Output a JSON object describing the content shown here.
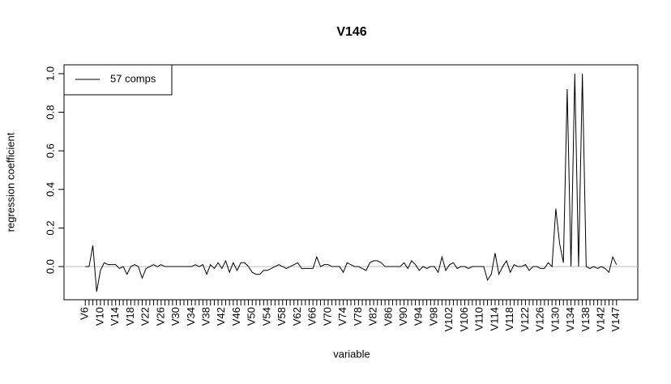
{
  "chart_data": {
    "type": "line",
    "title": "V146",
    "xlabel": "variable",
    "ylabel": "regression coefficient",
    "categories": [
      "V6",
      null,
      null,
      null,
      "V10",
      null,
      null,
      null,
      "V14",
      null,
      null,
      null,
      "V18",
      null,
      null,
      null,
      "V22",
      null,
      null,
      null,
      "V26",
      null,
      null,
      null,
      "V30",
      null,
      null,
      null,
      "V34",
      null,
      null,
      null,
      "V38",
      null,
      null,
      null,
      "V42",
      null,
      null,
      null,
      "V46",
      null,
      null,
      null,
      "V50",
      null,
      null,
      null,
      "V54",
      null,
      null,
      null,
      "V58",
      null,
      null,
      null,
      "V62",
      null,
      null,
      null,
      "V66",
      null,
      null,
      null,
      "V70",
      null,
      null,
      null,
      "V74",
      null,
      null,
      null,
      "V78",
      null,
      null,
      null,
      "V82",
      null,
      null,
      null,
      "V86",
      null,
      null,
      null,
      "V90",
      null,
      null,
      null,
      "V94",
      null,
      null,
      null,
      "V98",
      null,
      null,
      null,
      "V102",
      null,
      null,
      null,
      "V106",
      null,
      null,
      null,
      "V110",
      null,
      null,
      null,
      "V114",
      null,
      null,
      null,
      "V118",
      null,
      null,
      null,
      "V122",
      null,
      null,
      null,
      "V126",
      null,
      null,
      null,
      "V130",
      null,
      null,
      null,
      "V134",
      null,
      null,
      null,
      "V138",
      null,
      null,
      null,
      "V142",
      null,
      null,
      null,
      "V147"
    ],
    "series": [
      {
        "name": "57 comps",
        "color": "#000000",
        "values": [
          0,
          0,
          0.11,
          -0.13,
          -0.02,
          0.02,
          0.01,
          0.01,
          0.01,
          -0.01,
          0,
          -0.04,
          0,
          0.01,
          0,
          -0.06,
          -0.01,
          0,
          0.01,
          0,
          0.01,
          0,
          0,
          0,
          0,
          0,
          0,
          0,
          0,
          0.01,
          0,
          0.01,
          -0.04,
          0.01,
          -0.01,
          0.02,
          -0.01,
          0.03,
          -0.03,
          0.02,
          -0.02,
          0.02,
          0.02,
          0,
          -0.03,
          -0.04,
          -0.04,
          -0.02,
          -0.02,
          -0.01,
          0,
          0.01,
          0,
          -0.01,
          0,
          0.01,
          0.02,
          -0.01,
          -0.01,
          -0.01,
          -0.01,
          0.05,
          0,
          0.01,
          0.01,
          0,
          0,
          0,
          -0.03,
          0.02,
          0.01,
          0,
          0,
          -0.01,
          -0.02,
          0.02,
          0.03,
          0.03,
          0.02,
          0,
          0,
          0,
          0,
          0,
          0.02,
          -0.01,
          0.03,
          0.01,
          -0.02,
          0,
          -0.01,
          0,
          0,
          -0.03,
          0.05,
          -0.02,
          0.01,
          0.02,
          -0.01,
          0,
          0,
          -0.01,
          0,
          0,
          0,
          0,
          -0.07,
          -0.04,
          0.07,
          -0.04,
          0,
          0.03,
          -0.03,
          0.01,
          0,
          0,
          0.01,
          -0.02,
          0,
          0,
          -0.01,
          -0.01,
          0.02,
          0,
          0.3,
          0.12,
          0.02,
          0.92,
          0,
          1.0,
          0,
          1.0,
          0,
          -0.01,
          0,
          -0.01,
          0,
          -0.01,
          -0.03,
          0.05,
          0.01
        ]
      }
    ],
    "ylim": [
      -0.172,
      1.046
    ],
    "yticks": [
      {
        "value": 0,
        "label": "0.0"
      },
      {
        "value": 0.2,
        "label": "0.2"
      },
      {
        "value": 0.4,
        "label": "0.4"
      },
      {
        "value": 0.6,
        "label": "0.6"
      },
      {
        "value": 0.8,
        "label": "0.8"
      },
      {
        "value": 1,
        "label": "1.0"
      }
    ],
    "hline": 0,
    "hline_color": "#bebebe",
    "legend": "topleft"
  }
}
